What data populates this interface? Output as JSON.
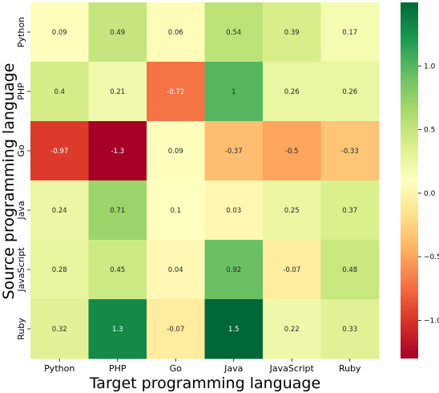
{
  "chart_data": {
    "type": "heatmap",
    "xlabel": "Target programming language",
    "ylabel": "Source programming language",
    "x_categories": [
      "Python",
      "PHP",
      "Go",
      "Java",
      "JavaScript",
      "Ruby"
    ],
    "y_categories": [
      "Python",
      "PHP",
      "Go",
      "Java",
      "JavaScript",
      "Ruby"
    ],
    "values": [
      [
        0.09,
        0.49,
        0.06,
        0.54,
        0.39,
        0.17
      ],
      [
        0.4,
        0.21,
        -0.72,
        1,
        0.26,
        0.26
      ],
      [
        -0.97,
        -1.3,
        0.09,
        -0.37,
        -0.5,
        -0.33
      ],
      [
        0.24,
        0.71,
        0.1,
        0.03,
        0.25,
        0.37
      ],
      [
        0.28,
        0.45,
        0.04,
        0.92,
        -0.07,
        0.48
      ],
      [
        0.32,
        1.3,
        -0.07,
        1.5,
        0.22,
        0.33
      ]
    ],
    "value_labels": [
      [
        "0.09",
        "0.49",
        "0.06",
        "0.54",
        "0.39",
        "0.17"
      ],
      [
        "0.4",
        "0.21",
        "-0.72",
        "1",
        "0.26",
        "0.26"
      ],
      [
        "-0.97",
        "-1.3",
        "0.09",
        "-0.37",
        "-0.5",
        "-0.33"
      ],
      [
        "0.24",
        "0.71",
        "0.1",
        "0.03",
        "0.25",
        "0.37"
      ],
      [
        "0.28",
        "0.45",
        "0.04",
        "0.92",
        "-0.07",
        "0.48"
      ],
      [
        "0.32",
        "1.3",
        "-0.07",
        "1.5",
        "0.22",
        "0.33"
      ]
    ],
    "colormap": "RdYlGn",
    "color_range": [
      -1.3,
      1.5
    ],
    "colorbar_ticks": [
      1.0,
      0.5,
      0.0,
      -0.5,
      -1.0
    ],
    "colorbar_tick_labels": [
      "1.0",
      "0.5",
      "0.0",
      "−0.5",
      "−1.0"
    ],
    "colorbar_position": "right",
    "grid": false
  }
}
